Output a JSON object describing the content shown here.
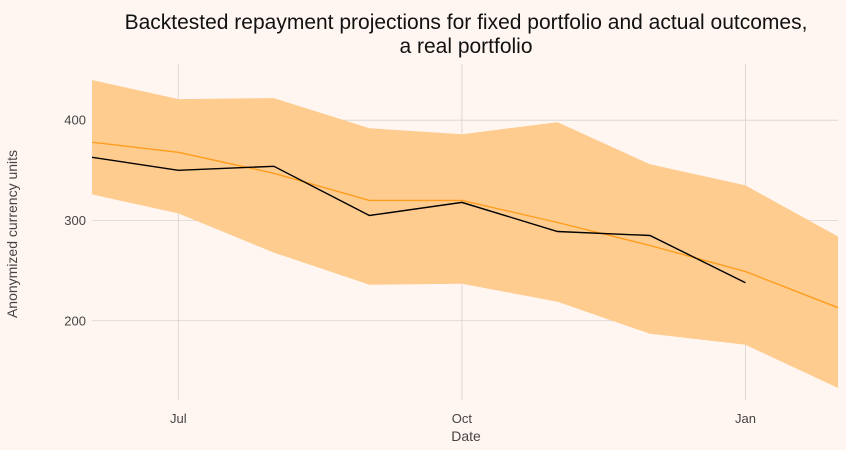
{
  "chart_data": {
    "type": "line",
    "title_lines": [
      "Backtested repayment projections for fixed portfolio and actual outcomes,",
      "a real portfolio"
    ],
    "xlabel": "Date",
    "ylabel": "Anonymized currency units",
    "x_ticks": [
      {
        "date": "2019-07-01",
        "label": "Jul"
      },
      {
        "date": "2019-10-01",
        "label": "Oct"
      },
      {
        "date": "2020-01-01",
        "label": "Jan"
      }
    ],
    "y_ticks": [
      200,
      300,
      400
    ],
    "xlim": [
      "2019-06-03",
      "2020-01-31"
    ],
    "ylim": [
      121,
      456
    ],
    "grid": true,
    "legend": "none",
    "dates": [
      "2019-06-03",
      "2019-07-01",
      "2019-08-01",
      "2019-09-01",
      "2019-10-01",
      "2019-11-01",
      "2019-12-01",
      "2020-01-01",
      "2020-01-31"
    ],
    "series": [
      {
        "role": "band",
        "color": "#ffcc90",
        "lower": [
          326,
          307,
          268,
          236,
          237,
          219,
          187,
          176,
          133
        ],
        "upper": [
          440,
          421,
          422,
          392,
          386,
          398,
          356,
          335,
          284
        ]
      },
      {
        "role": "projection",
        "color": "#ff9d1c",
        "values": [
          378,
          368,
          347,
          320,
          320,
          298,
          275,
          249,
          213
        ]
      },
      {
        "role": "actual",
        "color": "#000000",
        "values": [
          363,
          350,
          354,
          305,
          318,
          289,
          285,
          238,
          null
        ]
      }
    ]
  }
}
